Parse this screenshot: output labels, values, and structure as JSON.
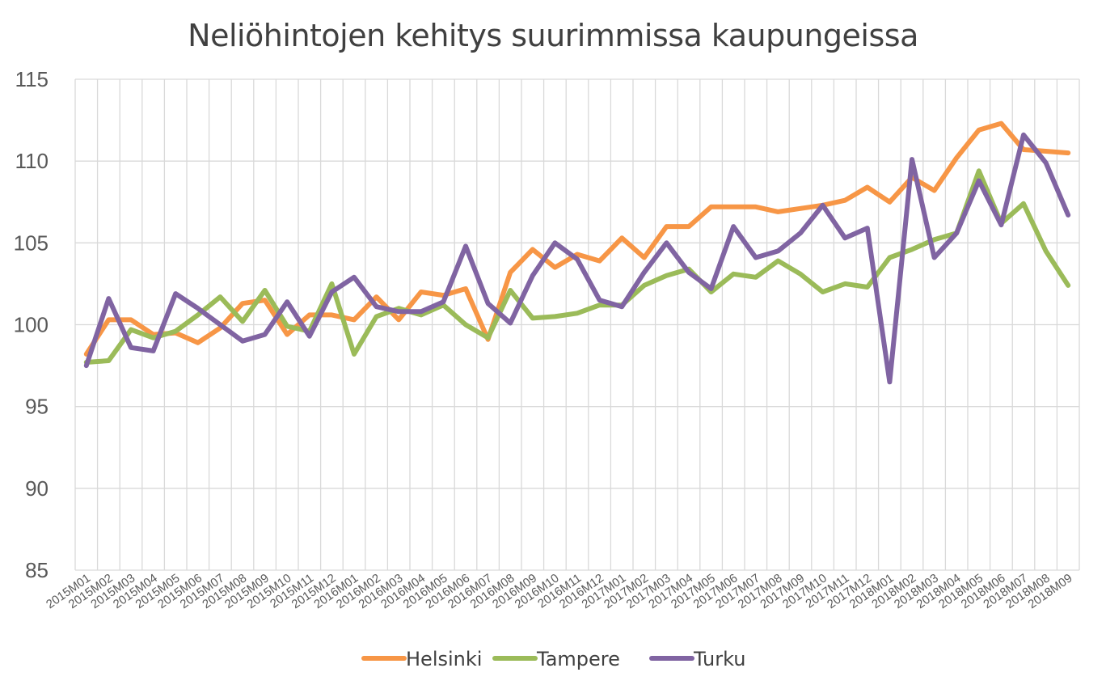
{
  "chart_data": {
    "type": "line",
    "title": "Neliöhintojen kehitys suurimmissa kaupungeissa",
    "xlabel": "",
    "ylabel": "",
    "ylim": [
      85,
      115
    ],
    "yticks": [
      "85",
      "90",
      "95",
      "100",
      "105",
      "110",
      "115"
    ],
    "grid": true,
    "legend_position": "bottom",
    "categories": [
      "2015M01",
      "2015M02",
      "2015M03",
      "2015M04",
      "2015M05",
      "2015M06",
      "2015M07",
      "2015M08",
      "2015M09",
      "2015M10",
      "2015M11",
      "2015M12",
      "2016M01",
      "2016M02",
      "2016M03",
      "2016M04",
      "2016M05",
      "2016M06",
      "2016M07",
      "2016M08",
      "2016M09",
      "2016M10",
      "2016M11",
      "2016M12",
      "2017M01",
      "2017M02",
      "2017M03",
      "2017M04",
      "2017M05",
      "2017M06",
      "2017M07",
      "2017M08",
      "2017M09",
      "2017M10",
      "2017M11",
      "2017M12",
      "2018M01",
      "2018M02",
      "2018M03",
      "2018M04",
      "2018M05",
      "2018M06",
      "2018M07",
      "2018M08",
      "2018M09"
    ],
    "series": [
      {
        "name": "Helsinki",
        "color": "#F79646",
        "values": [
          98.2,
          100.3,
          100.3,
          99.4,
          99.5,
          98.9,
          99.8,
          101.3,
          101.5,
          99.4,
          100.6,
          100.6,
          100.3,
          101.7,
          100.3,
          102.0,
          101.8,
          102.2,
          99.1,
          103.2,
          104.6,
          103.5,
          104.3,
          103.9,
          105.3,
          104.1,
          106.0,
          106.0,
          107.2,
          107.2,
          107.2,
          106.9,
          107.1,
          107.3,
          107.6,
          108.4,
          107.5,
          109.0,
          108.2,
          110.2,
          111.9,
          112.3,
          110.7,
          110.6,
          110.5
        ]
      },
      {
        "name": "Tampere",
        "color": "#9BBB59",
        "values": [
          97.7,
          97.8,
          99.7,
          99.2,
          99.6,
          100.6,
          101.7,
          100.2,
          102.1,
          99.9,
          99.6,
          102.5,
          98.2,
          100.5,
          101.0,
          100.6,
          101.2,
          100.0,
          99.2,
          102.1,
          100.4,
          100.5,
          100.7,
          101.2,
          101.2,
          102.4,
          103.0,
          103.4,
          102.0,
          103.1,
          102.9,
          103.9,
          103.1,
          102.0,
          102.5,
          102.3,
          104.1,
          104.6,
          105.2,
          105.6,
          109.4,
          106.2,
          107.4,
          104.5,
          102.4
        ]
      },
      {
        "name": "Turku",
        "color": "#8064A2",
        "values": [
          97.5,
          101.6,
          98.6,
          98.4,
          101.9,
          101.0,
          100.0,
          99.0,
          99.4,
          101.4,
          99.3,
          102.0,
          102.9,
          101.1,
          100.8,
          100.8,
          101.4,
          104.8,
          101.3,
          100.1,
          103.0,
          105.0,
          104.0,
          101.5,
          101.1,
          103.2,
          105.0,
          103.2,
          102.2,
          106.0,
          104.1,
          104.5,
          105.6,
          107.3,
          105.3,
          105.9,
          96.5,
          110.1,
          104.1,
          105.6,
          108.8,
          106.1,
          111.6,
          109.9,
          106.7
        ]
      }
    ]
  }
}
